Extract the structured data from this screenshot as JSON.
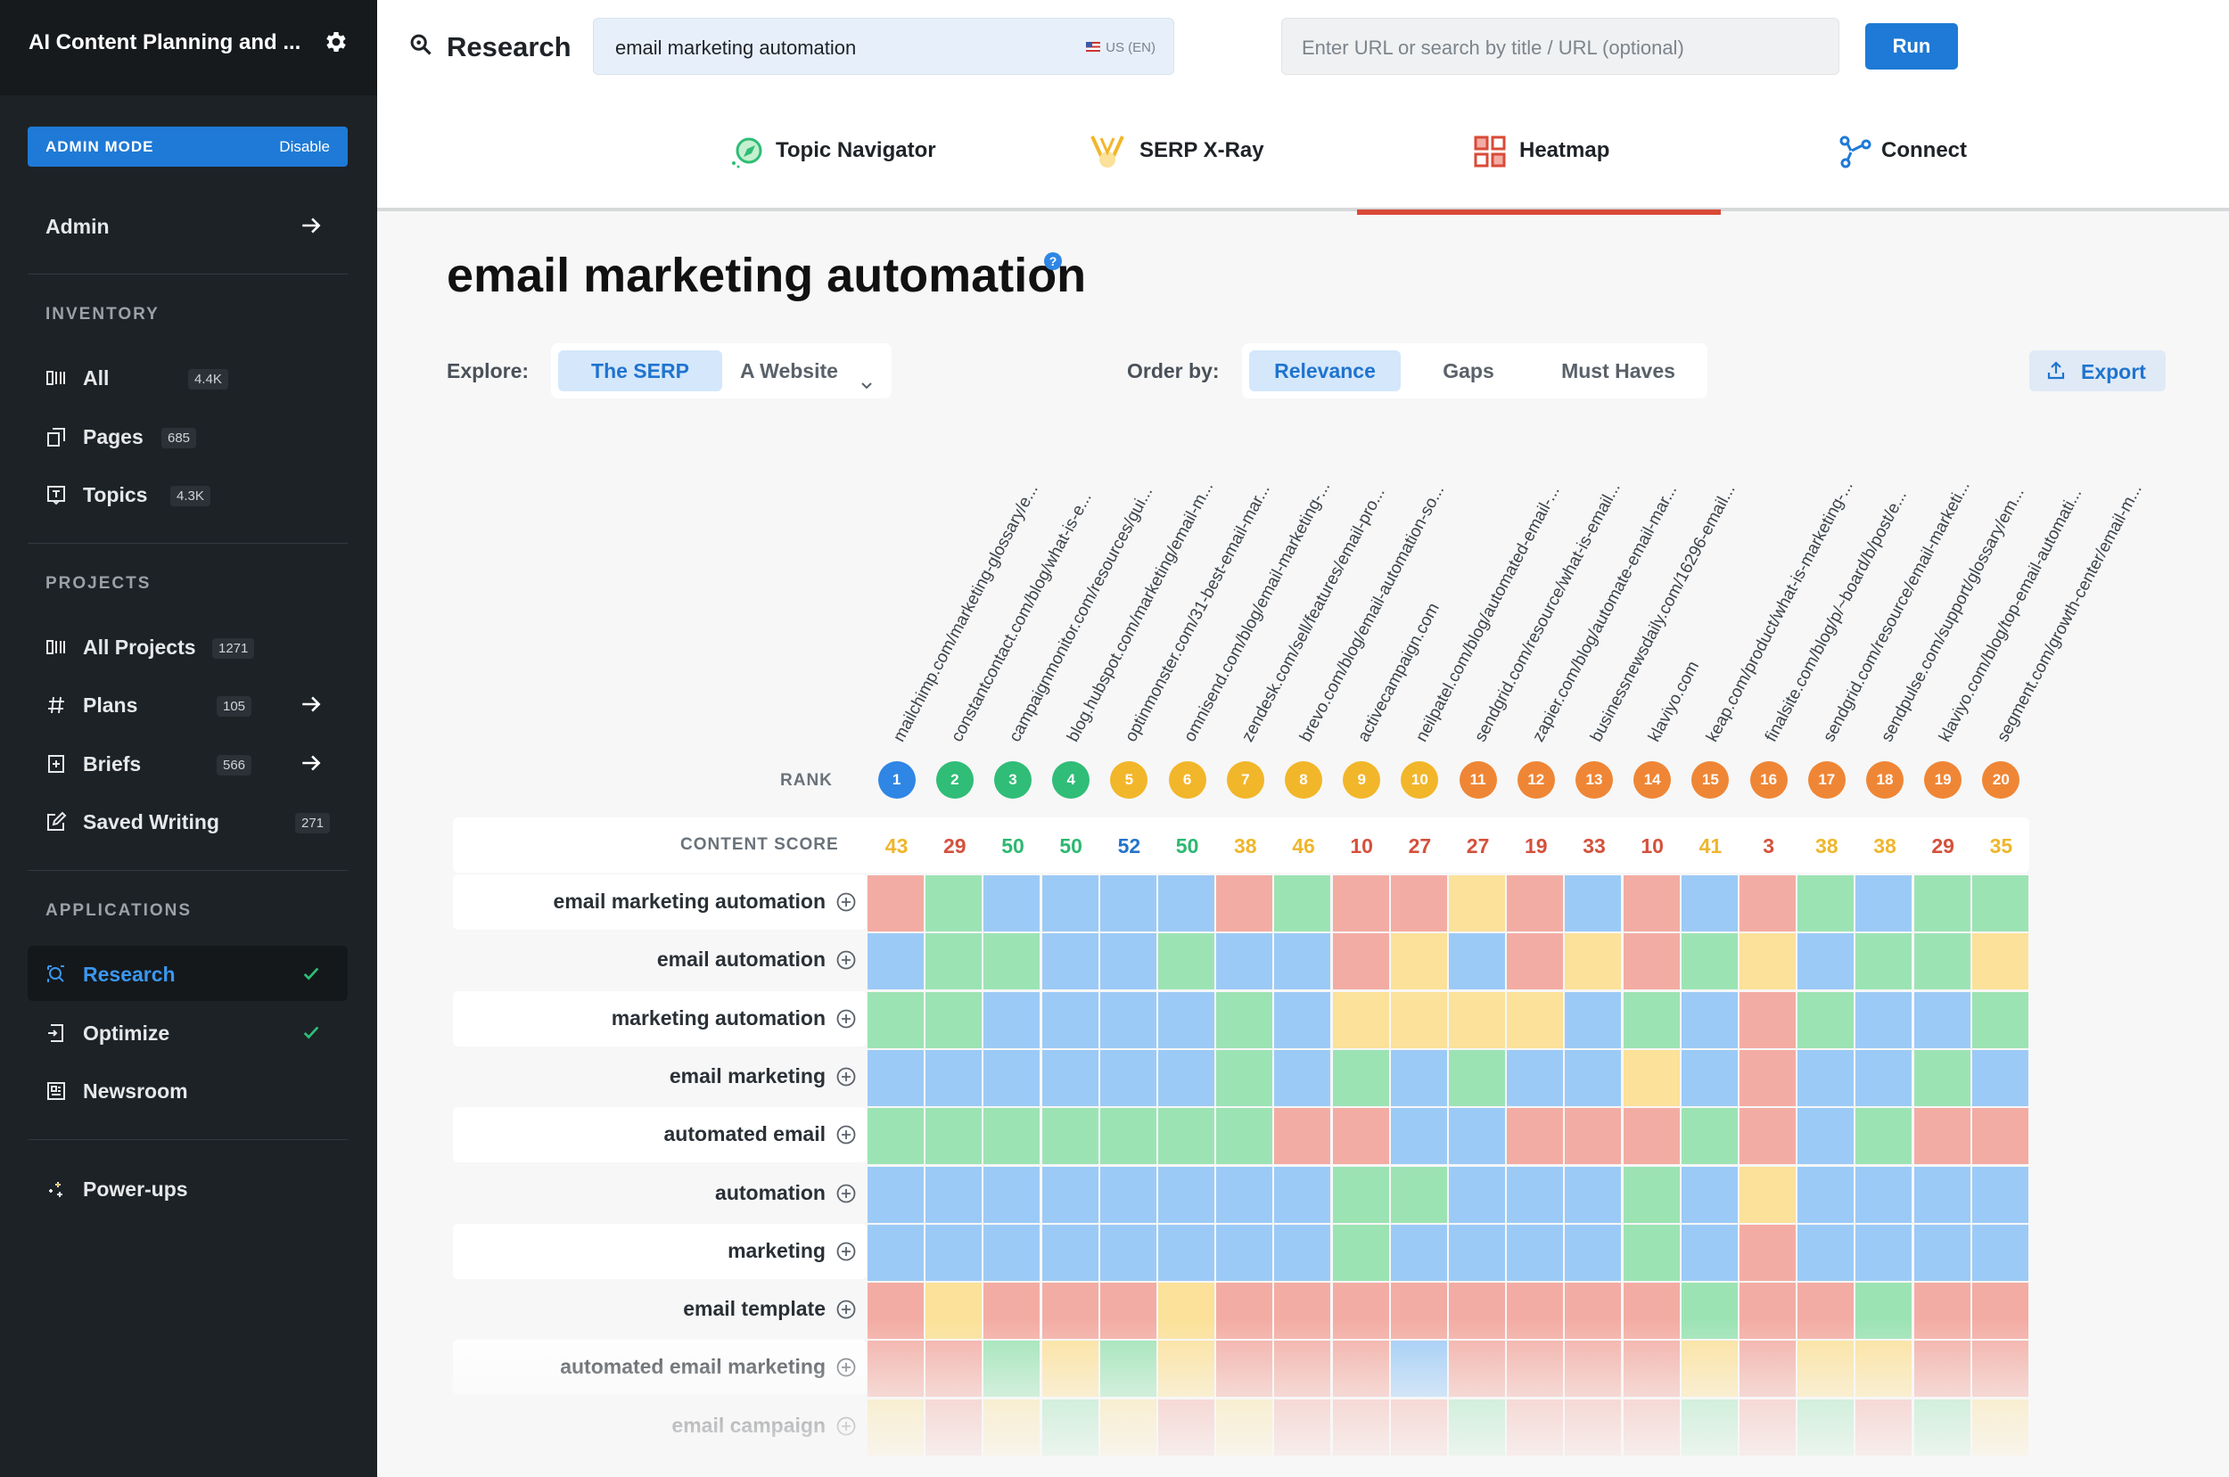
{
  "app": {
    "title": "AI Content Planning and ..."
  },
  "admin": {
    "label": "ADMIN MODE",
    "disable": "Disable"
  },
  "sidebar": {
    "admin": "Admin",
    "inventory_heading": "INVENTORY",
    "inventory": [
      {
        "label": "All",
        "count": "4.4K",
        "icon": "columns-icon"
      },
      {
        "label": "Pages",
        "count": "685",
        "icon": "pages-icon"
      },
      {
        "label": "Topics",
        "count": "4.3K",
        "icon": "topics-icon"
      }
    ],
    "projects_heading": "PROJECTS",
    "projects": [
      {
        "label": "All Projects",
        "count": "1271",
        "icon": "columns-icon"
      },
      {
        "label": "Plans",
        "count": "105",
        "icon": "hash-icon"
      },
      {
        "label": "Briefs",
        "count": "566",
        "icon": "brief-icon"
      },
      {
        "label": "Saved Writing",
        "count": "271",
        "icon": "edit-icon"
      }
    ],
    "applications_heading": "APPLICATIONS",
    "applications": [
      {
        "label": "Research",
        "icon": "search-icon"
      },
      {
        "label": "Optimize",
        "icon": "optimize-icon"
      },
      {
        "label": "Newsroom",
        "icon": "newsroom-icon"
      }
    ],
    "powerups": "Power-ups"
  },
  "topbar": {
    "title": "Research",
    "keyword": "email marketing automation",
    "locale": "US (EN)",
    "url_placeholder": "Enter URL or search by title / URL (optional)",
    "run": "Run"
  },
  "tabs": [
    {
      "label": "Topic Navigator",
      "icon": "compass-icon"
    },
    {
      "label": "SERP X-Ray",
      "icon": "xray-icon"
    },
    {
      "label": "Heatmap",
      "icon": "grid-icon",
      "active": true
    },
    {
      "label": "Connect",
      "icon": "connect-icon"
    }
  ],
  "main": {
    "title": "email marketing automation",
    "explore_label": "Explore:",
    "explore_options": [
      "The SERP",
      "A Website"
    ],
    "order_label": "Order by:",
    "order_options": [
      "Relevance",
      "Gaps",
      "Must Haves"
    ],
    "export": "Export",
    "rank_label": "RANK",
    "score_label": "CONTENT SCORE"
  },
  "colors": {
    "red": "#f3aca3",
    "green": "#9ce3b4",
    "blue": "#9ccaf6",
    "yellow": "#fbe199",
    "rank_blue": "#2f86e4",
    "rank_green": "#2fbd77",
    "rank_yellow": "#f2b62a",
    "rank_orange": "#ef8636",
    "score_yellow": "#efb62c",
    "score_red": "#d4513c",
    "score_green": "#2db871",
    "score_blue": "#2474cc"
  },
  "serp": [
    {
      "rank": "1",
      "url": "mailchimp.com/marketing-glossary/e...",
      "score": "43",
      "rank_color": "blue",
      "score_color": "yellow"
    },
    {
      "rank": "2",
      "url": "constantcontact.com/blog/what-is-e...",
      "score": "29",
      "rank_color": "green",
      "score_color": "red"
    },
    {
      "rank": "3",
      "url": "campaignmonitor.com/resources/gui...",
      "score": "50",
      "rank_color": "green",
      "score_color": "green"
    },
    {
      "rank": "4",
      "url": "blog.hubspot.com/marketing/email-m...",
      "score": "50",
      "rank_color": "green",
      "score_color": "green"
    },
    {
      "rank": "5",
      "url": "optinmonster.com/31-best-email-mar...",
      "score": "52",
      "rank_color": "yellow",
      "score_color": "blue"
    },
    {
      "rank": "6",
      "url": "omnisend.com/blog/email-marketing-...",
      "score": "50",
      "rank_color": "yellow",
      "score_color": "green"
    },
    {
      "rank": "7",
      "url": "zendesk.com/sell/features/email-pro...",
      "score": "38",
      "rank_color": "yellow",
      "score_color": "yellow"
    },
    {
      "rank": "8",
      "url": "brevo.com/blog/email-automation-so...",
      "score": "46",
      "rank_color": "yellow",
      "score_color": "yellow"
    },
    {
      "rank": "9",
      "url": "activecampaign.com",
      "score": "10",
      "rank_color": "yellow",
      "score_color": "red"
    },
    {
      "rank": "10",
      "url": "neilpatel.com/blog/automated-email-...",
      "score": "27",
      "rank_color": "yellow",
      "score_color": "red"
    },
    {
      "rank": "11",
      "url": "sendgrid.com/resource/what-is-email...",
      "score": "27",
      "rank_color": "orange",
      "score_color": "red"
    },
    {
      "rank": "12",
      "url": "zapier.com/blog/automate-email-mar...",
      "score": "19",
      "rank_color": "orange",
      "score_color": "red"
    },
    {
      "rank": "13",
      "url": "businessnewsdaily.com/16296-email...",
      "score": "33",
      "rank_color": "orange",
      "score_color": "red"
    },
    {
      "rank": "14",
      "url": "klaviyo.com",
      "score": "10",
      "rank_color": "orange",
      "score_color": "red"
    },
    {
      "rank": "15",
      "url": "keap.com/product/what-is-marketing-...",
      "score": "41",
      "rank_color": "orange",
      "score_color": "yellow"
    },
    {
      "rank": "16",
      "url": "finalsite.com/blog/p/~board/b/post/e...",
      "score": "3",
      "rank_color": "orange",
      "score_color": "red"
    },
    {
      "rank": "17",
      "url": "sendgrid.com/resource/email-marketi...",
      "score": "38",
      "rank_color": "orange",
      "score_color": "yellow"
    },
    {
      "rank": "18",
      "url": "sendpulse.com/support/glossary/em...",
      "score": "38",
      "rank_color": "orange",
      "score_color": "yellow"
    },
    {
      "rank": "19",
      "url": "klaviyo.com/blog/top-email-automati...",
      "score": "29",
      "rank_color": "orange",
      "score_color": "red"
    },
    {
      "rank": "20",
      "url": "segment.com/growth-center/email-m...",
      "score": "35",
      "rank_color": "orange",
      "score_color": "yellow"
    }
  ],
  "heatmap": [
    {
      "keyword": "email marketing automation",
      "cells": [
        "R",
        "G",
        "B",
        "B",
        "B",
        "B",
        "R",
        "G",
        "R",
        "R",
        "Y",
        "R",
        "B",
        "R",
        "B",
        "R",
        "G",
        "B",
        "G",
        "G"
      ]
    },
    {
      "keyword": "email automation",
      "cells": [
        "B",
        "G",
        "G",
        "B",
        "B",
        "G",
        "B",
        "B",
        "R",
        "Y",
        "B",
        "R",
        "Y",
        "R",
        "G",
        "Y",
        "B",
        "G",
        "G",
        "Y"
      ]
    },
    {
      "keyword": "marketing automation",
      "cells": [
        "G",
        "G",
        "B",
        "B",
        "B",
        "B",
        "G",
        "B",
        "Y",
        "Y",
        "Y",
        "Y",
        "B",
        "G",
        "B",
        "R",
        "G",
        "B",
        "B",
        "G"
      ]
    },
    {
      "keyword": "email marketing",
      "cells": [
        "B",
        "B",
        "B",
        "B",
        "B",
        "B",
        "G",
        "B",
        "G",
        "B",
        "G",
        "B",
        "B",
        "Y",
        "B",
        "R",
        "B",
        "B",
        "G",
        "B"
      ]
    },
    {
      "keyword": "automated email",
      "cells": [
        "G",
        "G",
        "G",
        "G",
        "G",
        "G",
        "G",
        "R",
        "R",
        "B",
        "B",
        "R",
        "R",
        "R",
        "G",
        "R",
        "B",
        "G",
        "R",
        "R"
      ]
    },
    {
      "keyword": "automation",
      "cells": [
        "B",
        "B",
        "B",
        "B",
        "B",
        "B",
        "B",
        "B",
        "G",
        "G",
        "B",
        "B",
        "B",
        "G",
        "B",
        "Y",
        "B",
        "B",
        "B",
        "B"
      ]
    },
    {
      "keyword": "marketing",
      "cells": [
        "B",
        "B",
        "B",
        "B",
        "B",
        "B",
        "B",
        "B",
        "G",
        "B",
        "B",
        "B",
        "B",
        "G",
        "B",
        "R",
        "B",
        "B",
        "B",
        "B"
      ]
    },
    {
      "keyword": "email template",
      "cells": [
        "R",
        "Y",
        "R",
        "R",
        "R",
        "Y",
        "R",
        "R",
        "R",
        "R",
        "R",
        "R",
        "R",
        "R",
        "G",
        "R",
        "R",
        "G",
        "R",
        "R"
      ]
    },
    {
      "keyword": "automated email marketing",
      "cells": [
        "R",
        "R",
        "G",
        "Y",
        "G",
        "Y",
        "R",
        "R",
        "R",
        "B",
        "R",
        "R",
        "R",
        "R",
        "Y",
        "R",
        "Y",
        "Y",
        "R",
        "R"
      ]
    },
    {
      "keyword": "email campaign",
      "cells": [
        "Y",
        "R",
        "Y",
        "G",
        "Y",
        "R",
        "Y",
        "R",
        "R",
        "R",
        "G",
        "R",
        "R",
        "R",
        "G",
        "R",
        "G",
        "R",
        "G",
        "Y"
      ]
    }
  ]
}
